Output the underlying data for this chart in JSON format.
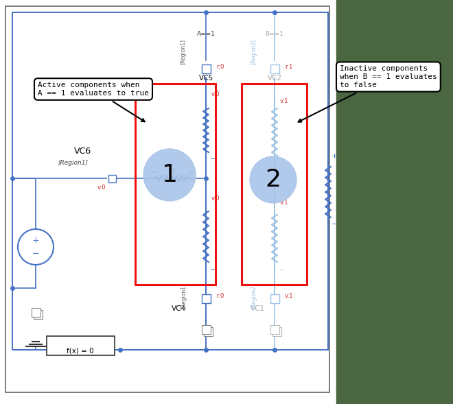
{
  "fig_width": 6.6,
  "fig_height": 5.89,
  "bg_color": "#ffffff",
  "border_color": "#555555",
  "lc": "#4472C4",
  "ilc": "#9DC3E6",
  "red_box_color": "#EE1111",
  "green_bg_color": "#4A6741",
  "ann1_text": "Active components when\nA == 1 evaluates to true",
  "ann2_text": "Inactive components\nwhen B == 1 evaluates\nto false",
  "lvc5": "VC5",
  "lvc6": "VC6",
  "lvc4": "VC4",
  "lvc1": "VC1",
  "lvc2": "VC2",
  "lregion1": "[Region1]",
  "lregion2": "[Region2]",
  "lA": "A==1",
  "lB": "B==1",
  "lfx": "f(x) = 0",
  "c1": "1",
  "c2": "2",
  "circle_color": "#A9C4E8",
  "red_lbl": "#CC2222",
  "gray_lbl": "#AAAAAA",
  "dark_gray": "#666666"
}
